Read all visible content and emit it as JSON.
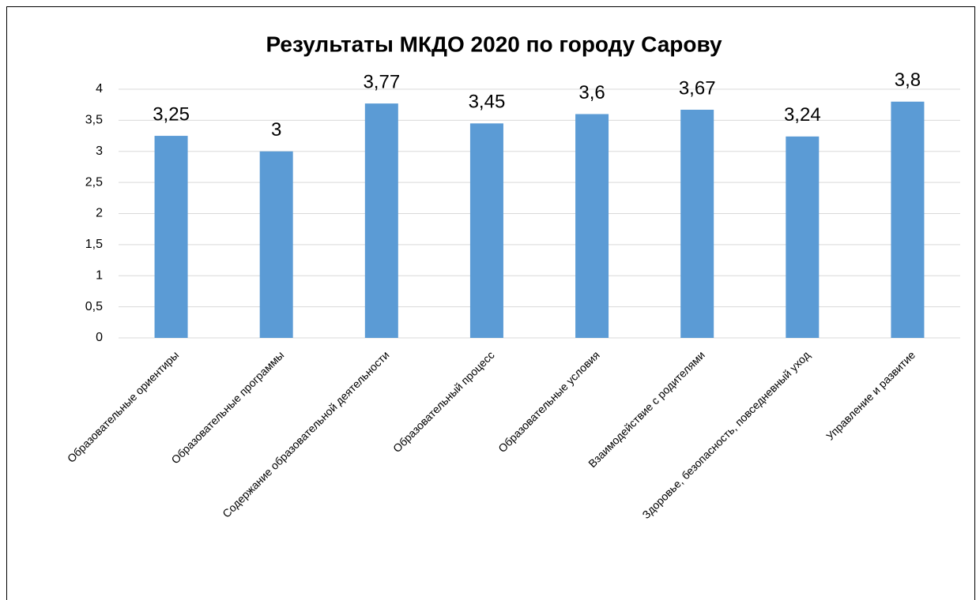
{
  "chart_data": {
    "type": "bar",
    "title": "Результаты МКДО 2020 по городу Сарову",
    "categories": [
      "Образовательные ориентиры",
      "Образовательные программы",
      "Содержание образовательной деятельности",
      "Образовательный процесс",
      "Образовательные условия",
      "Взаимодействие с родителями",
      "Здоровье, безопасность, повседневный уход",
      "Управление и развитие"
    ],
    "values": [
      3.25,
      3,
      3.77,
      3.45,
      3.6,
      3.67,
      3.24,
      3.8
    ],
    "value_labels": [
      "3,25",
      "3",
      "3,77",
      "3,45",
      "3,6",
      "3,67",
      "3,24",
      "3,8"
    ],
    "color": "#5b9bd5",
    "ylim": [
      0,
      4
    ],
    "yticks": [
      0,
      {
        "value": 0.5,
        "label": "0,5"
      },
      1,
      {
        "value": 1.5,
        "label": "1,5"
      },
      2,
      {
        "value": 2.5,
        "label": "2,5"
      },
      3,
      {
        "value": 3.5,
        "label": "3,5"
      },
      4
    ],
    "grid": true
  }
}
